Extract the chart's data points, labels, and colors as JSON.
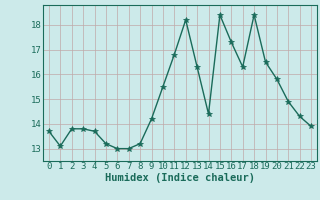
{
  "x": [
    0,
    1,
    2,
    3,
    4,
    5,
    6,
    7,
    8,
    9,
    10,
    11,
    12,
    13,
    14,
    15,
    16,
    17,
    18,
    19,
    20,
    21,
    22,
    23
  ],
  "y": [
    13.7,
    13.1,
    13.8,
    13.8,
    13.7,
    13.2,
    13.0,
    13.0,
    13.2,
    14.2,
    15.5,
    16.8,
    18.2,
    16.3,
    14.4,
    18.4,
    17.3,
    16.3,
    18.4,
    16.5,
    15.8,
    14.9,
    14.3,
    13.9
  ],
  "line_color": "#1a6b5a",
  "marker": "*",
  "marker_size": 4,
  "bg_color": "#cceaea",
  "grid_color": "#c0a8a8",
  "xlabel": "Humidex (Indice chaleur)",
  "xlim": [
    -0.5,
    23.5
  ],
  "ylim": [
    12.5,
    18.8
  ],
  "yticks": [
    13,
    14,
    15,
    16,
    17,
    18
  ],
  "xtick_labels": [
    "0",
    "1",
    "2",
    "3",
    "4",
    "5",
    "6",
    "7",
    "8",
    "9",
    "10",
    "11",
    "12",
    "13",
    "14",
    "15",
    "16",
    "17",
    "18",
    "19",
    "20",
    "21",
    "22",
    "23"
  ],
  "xlabel_fontsize": 7.5,
  "tick_fontsize": 6.5
}
